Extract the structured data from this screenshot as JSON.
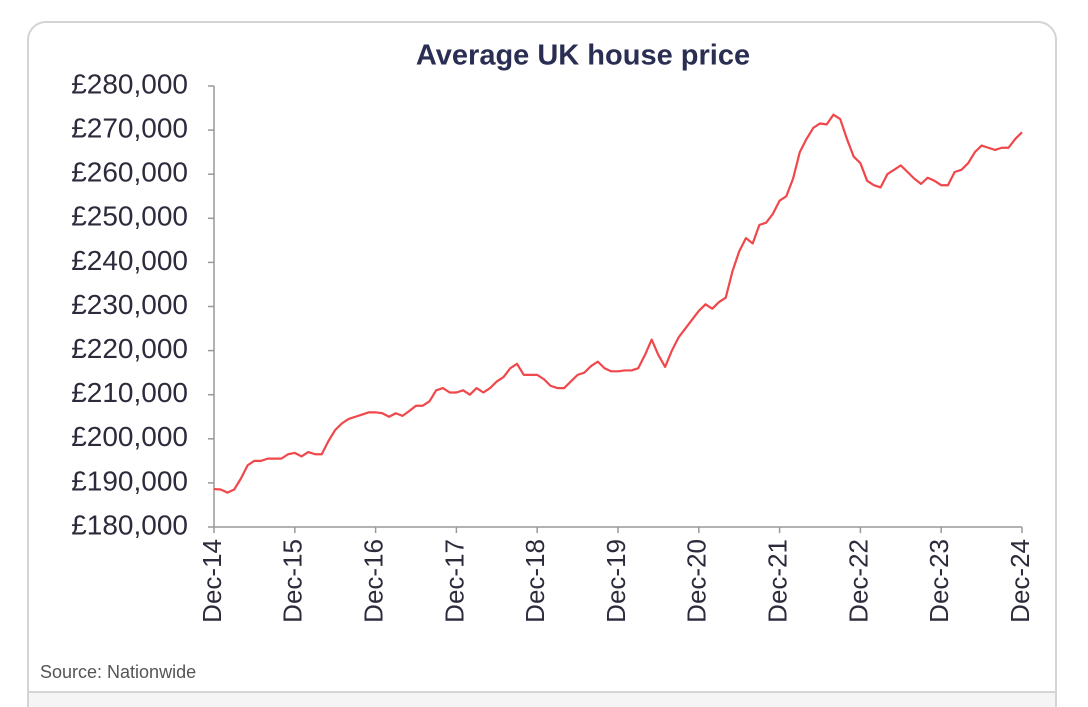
{
  "chart_data": {
    "type": "line",
    "title": "Average UK house price",
    "source": "Source: Nationwide",
    "color": "#f0474b",
    "categories": [
      "Dec-14",
      null,
      null,
      null,
      null,
      null,
      null,
      null,
      null,
      null,
      null,
      null,
      "Dec-15",
      null,
      null,
      null,
      null,
      null,
      null,
      null,
      null,
      null,
      null,
      null,
      "Dec-16",
      null,
      null,
      null,
      null,
      null,
      null,
      null,
      null,
      null,
      null,
      null,
      "Dec-17",
      null,
      null,
      null,
      null,
      null,
      null,
      null,
      null,
      null,
      null,
      null,
      "Dec-18",
      null,
      null,
      null,
      null,
      null,
      null,
      null,
      null,
      null,
      null,
      null,
      "Dec-19",
      null,
      null,
      null,
      null,
      null,
      null,
      null,
      null,
      null,
      null,
      null,
      "Dec-20",
      null,
      null,
      null,
      null,
      null,
      null,
      null,
      null,
      null,
      null,
      null,
      "Dec-21",
      null,
      null,
      null,
      null,
      null,
      null,
      null,
      null,
      null,
      null,
      null,
      "Dec-22",
      null,
      null,
      null,
      null,
      null,
      null,
      null,
      null,
      null,
      null,
      null,
      "Dec-23",
      null,
      null,
      null,
      null,
      null,
      null,
      null,
      null,
      null,
      null,
      null,
      "Dec-24"
    ],
    "values": [
      188600,
      188500,
      187800,
      188500,
      191000,
      194000,
      195000,
      195000,
      195500,
      195500,
      195500,
      196500,
      196800,
      196000,
      197000,
      196500,
      196500,
      199500,
      202000,
      203500,
      204500,
      205000,
      205500,
      206000,
      206000,
      205800,
      205000,
      205800,
      205200,
      206300,
      207500,
      207500,
      208500,
      211000,
      211500,
      210500,
      210500,
      211000,
      210000,
      211500,
      210500,
      211500,
      213000,
      214000,
      216000,
      217000,
      214500,
      214500,
      214500,
      213500,
      212000,
      211500,
      211500,
      213000,
      214500,
      215000,
      216500,
      217500,
      216000,
      215300,
      215300,
      215500,
      215500,
      216000,
      219000,
      222500,
      219000,
      216300,
      220000,
      223000,
      225000,
      227000,
      229000,
      230500,
      229500,
      231000,
      232000,
      238000,
      242500,
      245500,
      244300,
      248500,
      249000,
      251000,
      254000,
      255000,
      259000,
      265000,
      268000,
      270500,
      271500,
      271300,
      273500,
      272500,
      268000,
      264000,
      262500,
      258500,
      257500,
      257000,
      260000,
      261000,
      262000,
      260500,
      259000,
      257800,
      259200,
      258500,
      257500,
      257500,
      260500,
      261000,
      262500,
      265000,
      266500,
      266000,
      265500,
      266000,
      266000,
      268000,
      269500
    ],
    "ylim": [
      180000,
      280000
    ],
    "yticks": [
      {
        "value": 180000,
        "label": "£180,000"
      },
      {
        "value": 190000,
        "label": "£190,000"
      },
      {
        "value": 200000,
        "label": "£200,000"
      },
      {
        "value": 210000,
        "label": "£210,000"
      },
      {
        "value": 220000,
        "label": "£220,000"
      },
      {
        "value": 230000,
        "label": "£230,000"
      },
      {
        "value": 240000,
        "label": "£240,000"
      },
      {
        "value": 250000,
        "label": "£250,000"
      },
      {
        "value": 260000,
        "label": "£260,000"
      },
      {
        "value": 270000,
        "label": "£270,000"
      },
      {
        "value": 280000,
        "label": "£280,000"
      }
    ]
  }
}
